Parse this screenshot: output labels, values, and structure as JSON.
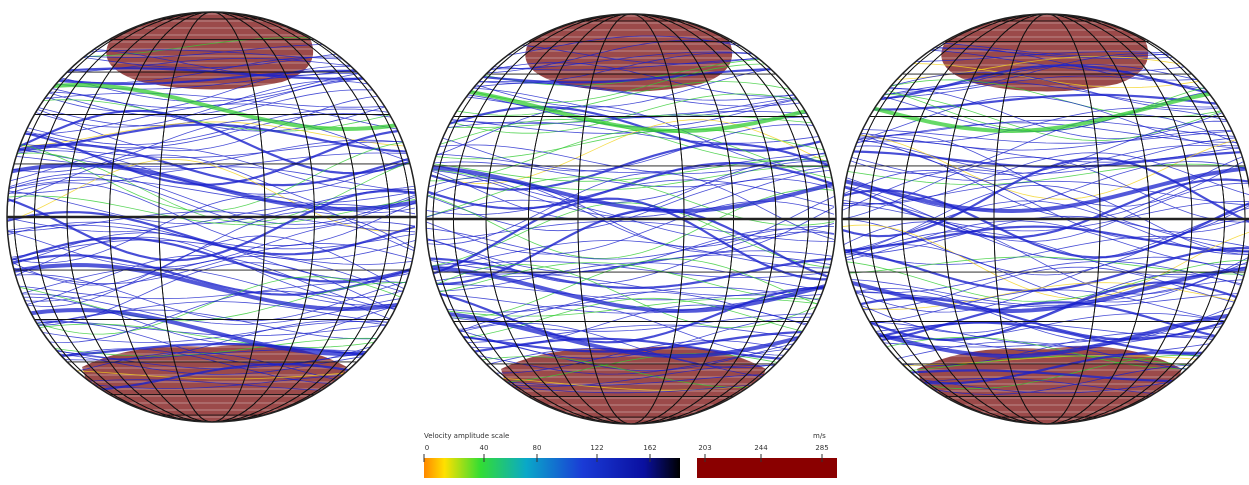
{
  "figure": {
    "globes": [
      {
        "name": "left-globe"
      },
      {
        "name": "center-globe"
      },
      {
        "name": "right-globe"
      }
    ],
    "colors": {
      "slow_flow": "#f2d21c",
      "mid_flow": "#33cc33",
      "fast_flow": "#1a22cc",
      "polar_region": "#8a2a2a",
      "grid": "#111111"
    }
  },
  "colorbar": {
    "title": "Velocity amplitude scale",
    "unit": "m/s",
    "ticks": [
      "0",
      "40",
      "80",
      "122",
      "162",
      "203",
      "244",
      "285"
    ]
  }
}
